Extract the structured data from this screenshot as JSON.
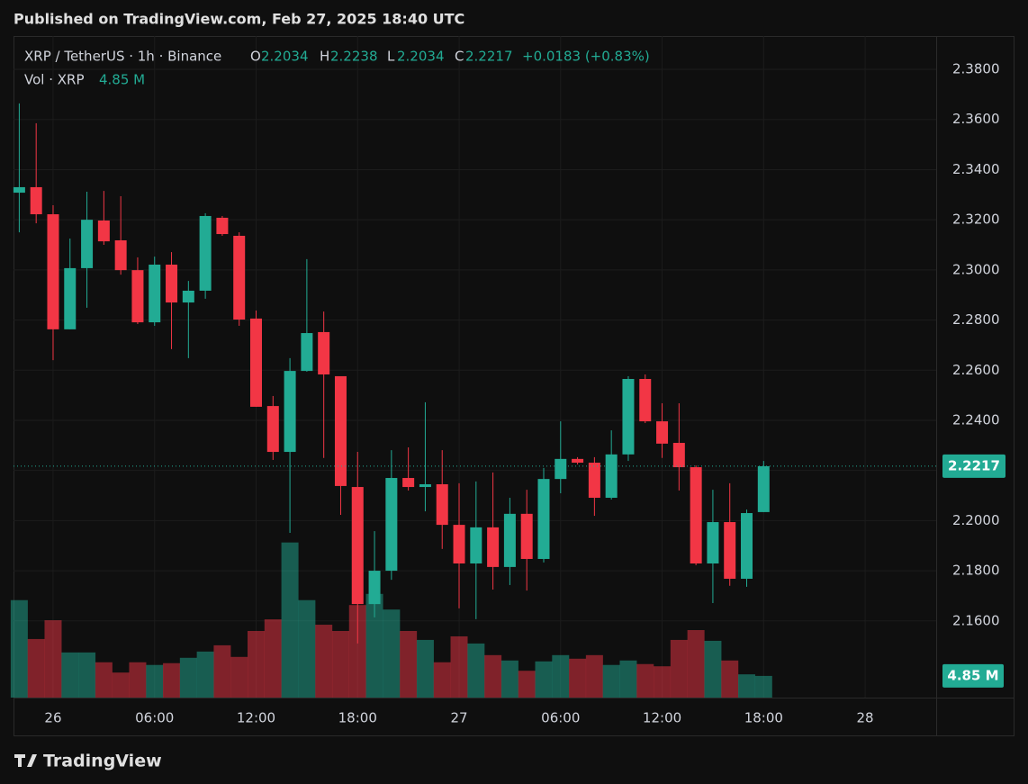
{
  "chart_data": {
    "type": "candlestick",
    "title": "Published on TradingView.com, Feb 27, 2025 18:40 UTC",
    "brand": "TradingView",
    "legend": {
      "symbol": "XRP / TetherUS · 1h · Binance",
      "o": "O",
      "h": "H",
      "l": "L",
      "c": "C",
      "change": "+0.0183 (+0.83%)"
    },
    "volume_title": "Vol · XRP",
    "volume_label": "4.85 M",
    "up_color": "#22ab94",
    "down_color": "#f23645",
    "grid": true,
    "x": [
      -2,
      -1,
      0,
      1,
      2,
      3,
      4,
      5,
      6,
      7,
      8,
      9,
      10,
      11,
      12,
      13,
      14,
      15,
      16,
      17,
      18,
      19,
      20,
      21,
      22,
      23,
      24,
      25,
      26,
      27,
      28,
      29,
      30,
      31,
      32,
      33,
      34,
      35,
      36,
      37,
      38,
      39,
      40,
      41,
      42
    ],
    "open": [
      2.3308,
      2.333,
      2.3222,
      2.2763,
      2.3007,
      2.3197,
      2.3118,
      2.2999,
      2.2791,
      2.3021,
      2.287,
      2.2917,
      2.3208,
      2.3136,
      2.2806,
      2.2457,
      2.2274,
      2.2597,
      2.2752,
      2.2576,
      2.2134,
      2.1667,
      2.18,
      2.217,
      2.2134,
      2.2145,
      2.1983,
      2.1829,
      2.1973,
      2.1815,
      2.2027,
      2.1847,
      2.2166,
      2.2246,
      2.2231,
      2.2091,
      2.2264,
      2.2565,
      2.2396,
      2.231,
      2.2213,
      2.1829,
      2.1994,
      2.1768,
      2.2034
    ],
    "high": [
      2.3664,
      2.3585,
      2.3258,
      2.3125,
      2.3312,
      2.3315,
      2.3294,
      2.305,
      2.3053,
      2.3071,
      2.2956,
      2.3226,
      2.3215,
      2.315,
      2.2838,
      2.2497,
      2.2648,
      2.3043,
      2.2834,
      2.2576,
      2.2274,
      2.1958,
      2.2281,
      2.2292,
      2.2472,
      2.2281,
      2.2149,
      2.2156,
      2.2192,
      2.2091,
      2.2123,
      2.221,
      2.2396,
      2.2253,
      2.2253,
      2.236,
      2.2576,
      2.2583,
      2.2468,
      2.2468,
      2.222,
      2.2123,
      2.2149,
      2.2044,
      2.2238
    ],
    "low": [
      2.315,
      2.3186,
      2.264,
      2.2763,
      2.2849,
      2.31,
      2.2981,
      2.2784,
      2.2777,
      2.2684,
      2.2648,
      2.2885,
      2.3136,
      2.2777,
      2.2454,
      2.2242,
      2.1951,
      2.2594,
      2.225,
      2.2023,
      2.151,
      2.1614,
      2.1764,
      2.212,
      2.2037,
      2.1887,
      2.165,
      2.1607,
      2.1725,
      2.1743,
      2.1721,
      2.1833,
      2.2109,
      2.2224,
      2.2019,
      2.2084,
      2.2238,
      2.2389,
      2.225,
      2.212,
      2.1822,
      2.1671,
      2.174,
      2.1736,
      2.2034
    ],
    "close": [
      2.333,
      2.3222,
      2.2763,
      2.3007,
      2.32,
      2.3114,
      2.2999,
      2.2791,
      2.3021,
      2.287,
      2.2917,
      2.3215,
      2.3143,
      2.2802,
      2.2454,
      2.2274,
      2.2597,
      2.2748,
      2.2583,
      2.2138,
      2.1667,
      2.18,
      2.217,
      2.2134,
      2.2145,
      2.1983,
      2.1829,
      2.1973,
      2.1815,
      2.2027,
      2.1847,
      2.2166,
      2.2246,
      2.2231,
      2.2091,
      2.2264,
      2.2565,
      2.2396,
      2.2307,
      2.2213,
      2.1829,
      2.1994,
      2.1768,
      2.203,
      2.2217
    ],
    "volume": {
      "axis": "y2",
      "values": [
        21.8,
        13.1,
        17.3,
        10.1,
        10.1,
        7.9,
        5.6,
        7.9,
        7.3,
        7.7,
        8.9,
        10.3,
        11.7,
        9.1,
        14.9,
        17.5,
        34.7,
        21.8,
        16.3,
        14.9,
        20.7,
        23.2,
        19.7,
        14.9,
        12.9,
        7.9,
        13.7,
        12.1,
        9.5,
        8.3,
        6.0,
        8.1,
        9.5,
        8.7,
        9.5,
        7.3,
        8.3,
        7.5,
        7.0,
        12.9,
        15.1,
        12.7,
        8.3,
        5.2,
        4.85
      ]
    },
    "xlim": [
      -2.34,
      52.2
    ],
    "ylim": [
      2.1294,
      2.3933
    ],
    "y2lim": [
      0,
      148
    ],
    "xticks": [
      {
        "value": 0,
        "label": "26"
      },
      {
        "value": 6,
        "label": "06:00"
      },
      {
        "value": 12,
        "label": "12:00"
      },
      {
        "value": 18,
        "label": "18:00"
      },
      {
        "value": 24,
        "label": "27"
      },
      {
        "value": 30,
        "label": "06:00"
      },
      {
        "value": 36,
        "label": "12:00"
      },
      {
        "value": 42,
        "label": "18:00"
      },
      {
        "value": 48,
        "label": "28"
      }
    ],
    "yticks": [
      {
        "value": 2.16,
        "label": "2.1600"
      },
      {
        "value": 2.18,
        "label": "2.1800"
      },
      {
        "value": 2.2,
        "label": "2.2000"
      },
      {
        "value": 2.22,
        "label": "2.2200"
      },
      {
        "value": 2.24,
        "label": "2.2400"
      },
      {
        "value": 2.26,
        "label": "2.2600"
      },
      {
        "value": 2.28,
        "label": "2.2800"
      },
      {
        "value": 2.3,
        "label": "2.3000"
      },
      {
        "value": 2.32,
        "label": "2.3200"
      },
      {
        "value": 2.34,
        "label": "2.3400"
      },
      {
        "value": 2.36,
        "label": "2.3600"
      },
      {
        "value": 2.38,
        "label": "2.3800"
      }
    ]
  }
}
